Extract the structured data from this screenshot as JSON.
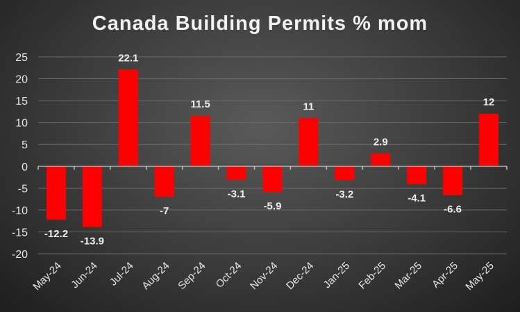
{
  "chart_data": {
    "type": "bar",
    "title": "Canada Building Permits % mom",
    "xlabel": "",
    "ylabel": "",
    "categories": [
      "May-24",
      "Jun-24",
      "Jul-24",
      "Aug-24",
      "Sep-24",
      "Oct-24",
      "Nov-24",
      "Dec-24",
      "Jan-25",
      "Feb-25",
      "Mar-25",
      "Apr-25",
      "May-25"
    ],
    "values": [
      -12.2,
      -13.9,
      22.1,
      -7,
      11.5,
      -3.1,
      -5.9,
      11,
      -3.2,
      2.9,
      -4.1,
      -6.6,
      12
    ],
    "data_labels": [
      "-12.2",
      "-13.9",
      "22.1",
      "-7",
      "11.5",
      "-3.1",
      "-5.9",
      "11",
      "-3.2",
      "2.9",
      "-4.1",
      "-6.6",
      "12"
    ],
    "ylim": [
      -20,
      25
    ],
    "yticks": [
      "25",
      "20",
      "15",
      "10",
      "5",
      "0",
      "-5",
      "-10",
      "-15",
      "-20"
    ],
    "grid": true,
    "bar_color": "#ff0000"
  }
}
